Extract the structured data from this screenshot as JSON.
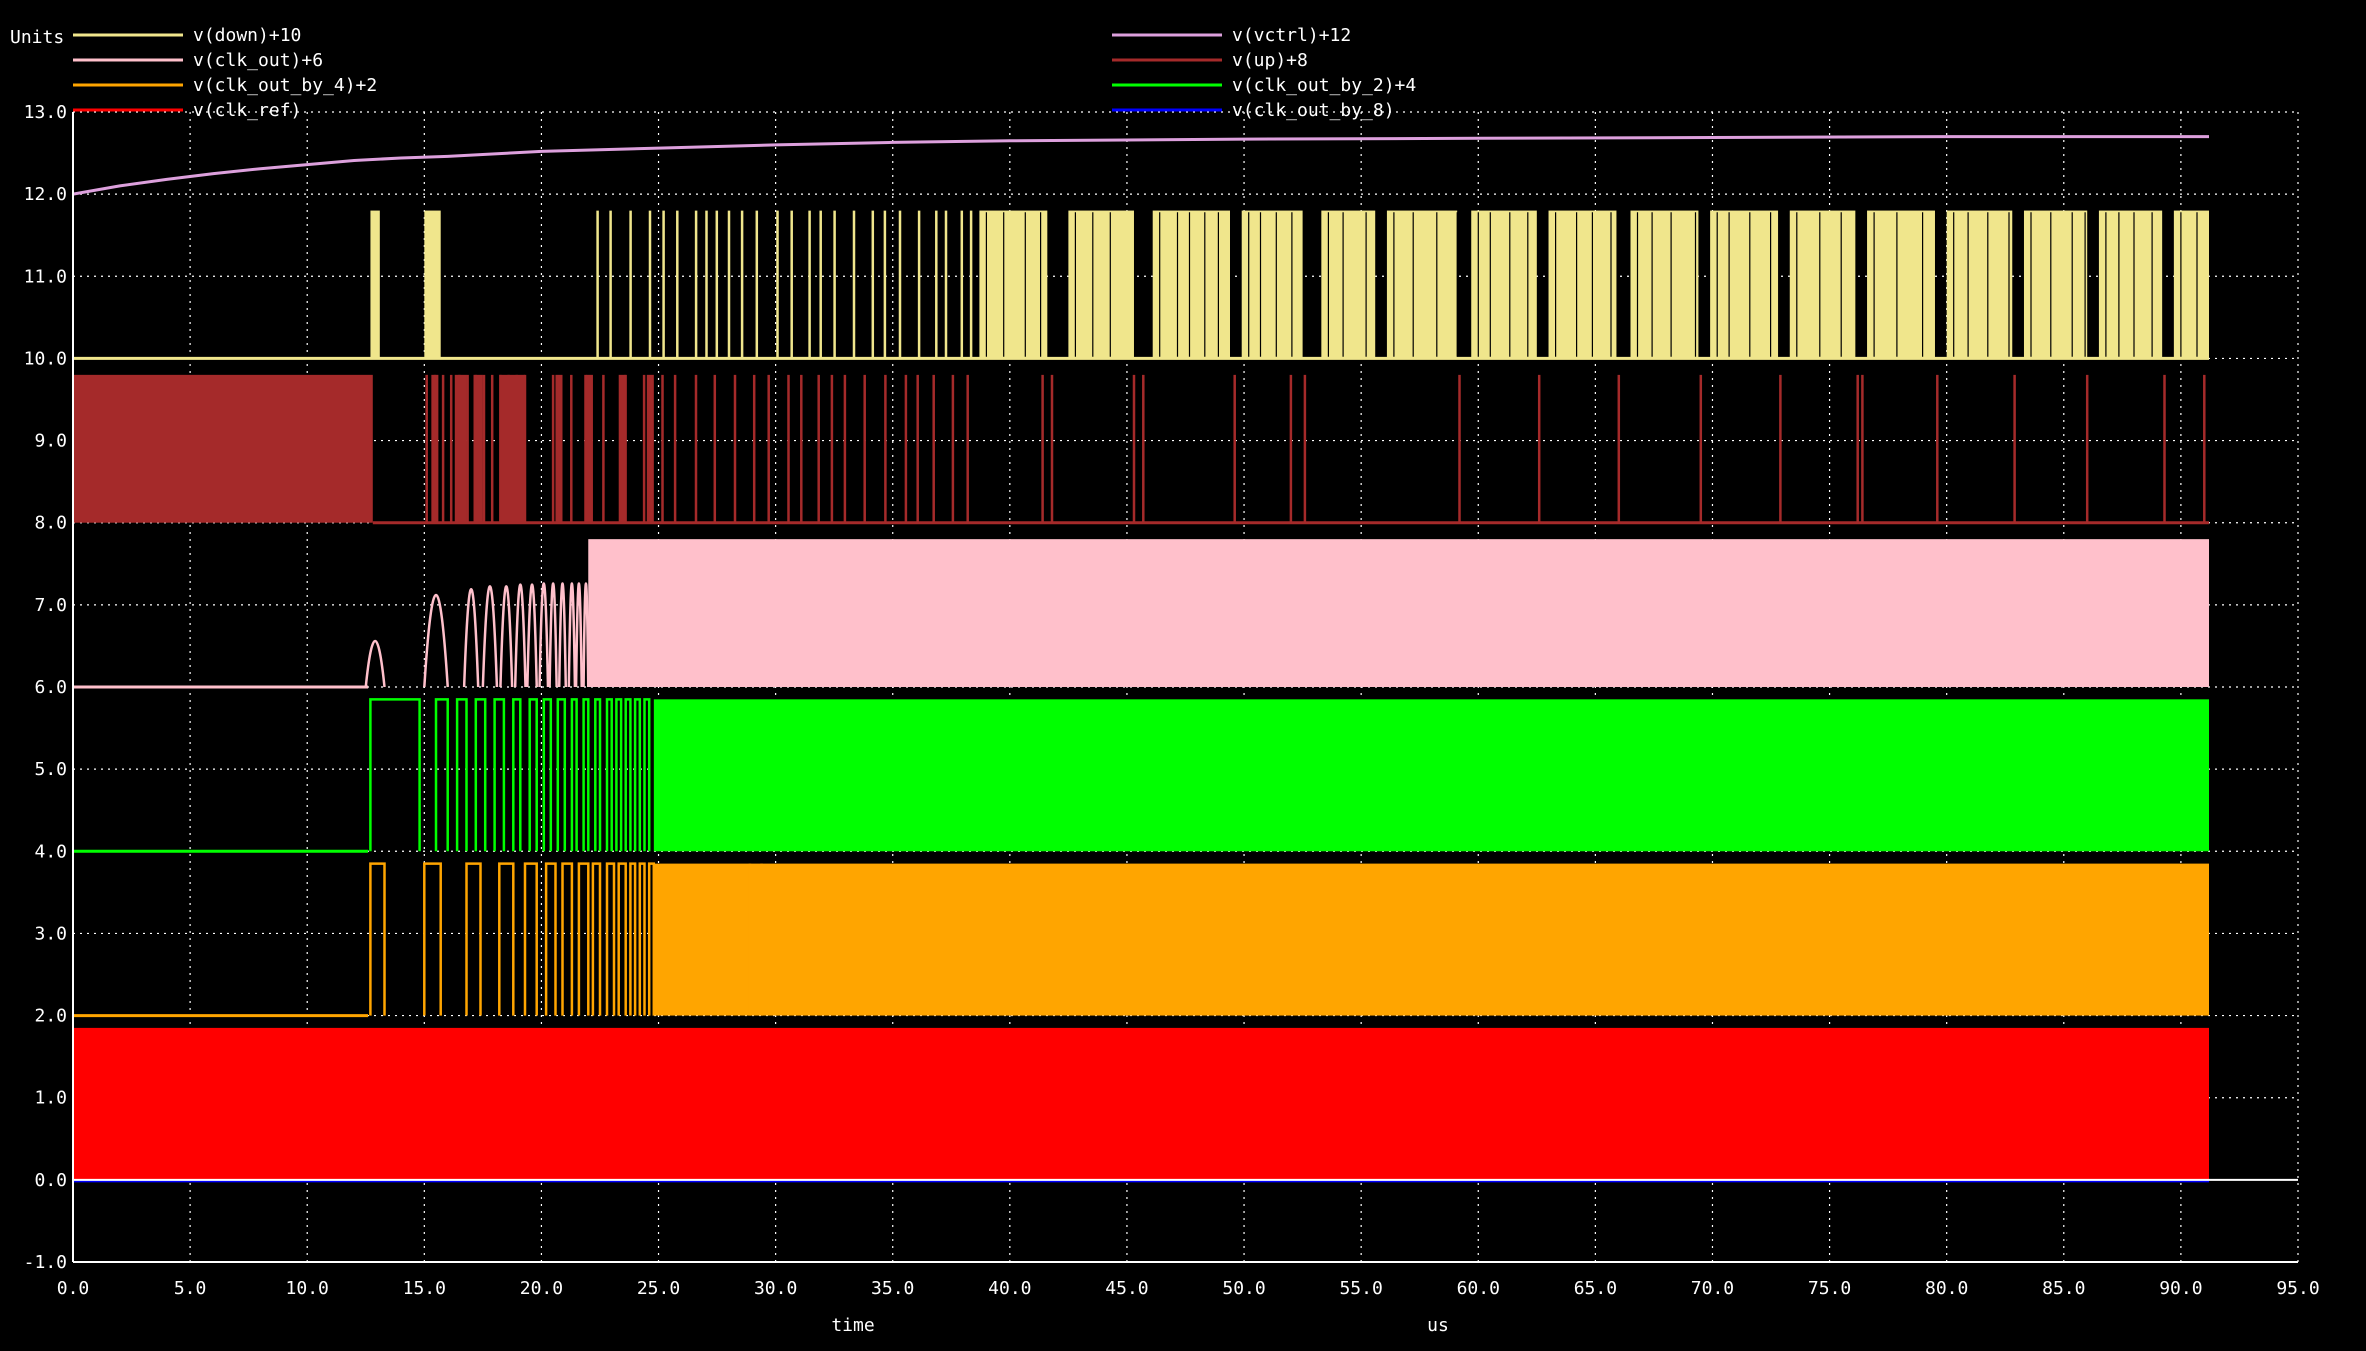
{
  "chart_data": {
    "type": "line",
    "units_label": "Units",
    "xlabel": "time",
    "xunit": "us",
    "xlim": [
      0,
      95
    ],
    "ylim": [
      -1,
      13
    ],
    "x_ticks": [
      0,
      5,
      10,
      15,
      20,
      25,
      30,
      35,
      40,
      45,
      50,
      55,
      60,
      65,
      70,
      75,
      80,
      85,
      90,
      95
    ],
    "x_tick_labels": [
      "0.0",
      "5.0",
      "10.0",
      "15.0",
      "20.0",
      "25.0",
      "30.0",
      "35.0",
      "40.0",
      "45.0",
      "50.0",
      "55.0",
      "60.0",
      "65.0",
      "70.0",
      "75.0",
      "80.0",
      "85.0",
      "90.0",
      "95.0"
    ],
    "y_ticks": [
      -1,
      0,
      1,
      2,
      3,
      4,
      5,
      6,
      7,
      8,
      9,
      10,
      11,
      12,
      13
    ],
    "y_tick_labels": [
      "-1.0",
      "0.0",
      "1.0",
      "2.0",
      "3.0",
      "4.0",
      "5.0",
      "6.0",
      "7.0",
      "8.0",
      "9.0",
      "10.0",
      "11.0",
      "12.0",
      "13.0"
    ],
    "grid": true,
    "background": "#000000",
    "legend_placement": "top",
    "series": [
      {
        "name": "v(down)+10",
        "color": "#f0e68c",
        "offset": 10,
        "amplitude": 1.8,
        "start": 12.6,
        "end": 91.2
      },
      {
        "name": "v(clk_out)+6",
        "color": "#ffc0cb",
        "offset": 6,
        "amplitude": 1.8,
        "start": 12.6,
        "end": 91.2
      },
      {
        "name": "v(clk_out_by_4)+2",
        "color": "#ffa500",
        "offset": 2,
        "amplitude": 1.85,
        "start": 12.6,
        "end": 91.2
      },
      {
        "name": "v(clk_ref)",
        "color": "#ff0000",
        "offset": 0,
        "amplitude": 1.85,
        "start": 0,
        "end": 91.2
      },
      {
        "name": "v(vctrl)+12",
        "color": "#dda0dd",
        "offset": 12,
        "x": [
          0,
          2,
          4,
          6,
          8,
          10,
          12,
          14,
          16,
          18,
          20,
          25,
          30,
          35,
          40,
          50,
          60,
          70,
          80,
          91.2
        ],
        "y": [
          12.0,
          12.1,
          12.18,
          12.25,
          12.31,
          12.36,
          12.41,
          12.44,
          12.46,
          12.49,
          12.52,
          12.56,
          12.6,
          12.63,
          12.65,
          12.67,
          12.68,
          12.69,
          12.7,
          12.7
        ]
      },
      {
        "name": "v(up)+8",
        "color": "#a52a2a",
        "offset": 8,
        "amplitude": 1.8,
        "start": 0,
        "end": 91.2
      },
      {
        "name": "v(clk_out_by_2)+4",
        "color": "#00ff00",
        "offset": 4,
        "amplitude": 1.85,
        "start": 12.6,
        "end": 91.2
      },
      {
        "name": "v(clk_out_by_8)",
        "color": "#0000ff",
        "offset": 0,
        "amplitude": 0.05,
        "start": 0,
        "end": 91.2
      }
    ]
  }
}
